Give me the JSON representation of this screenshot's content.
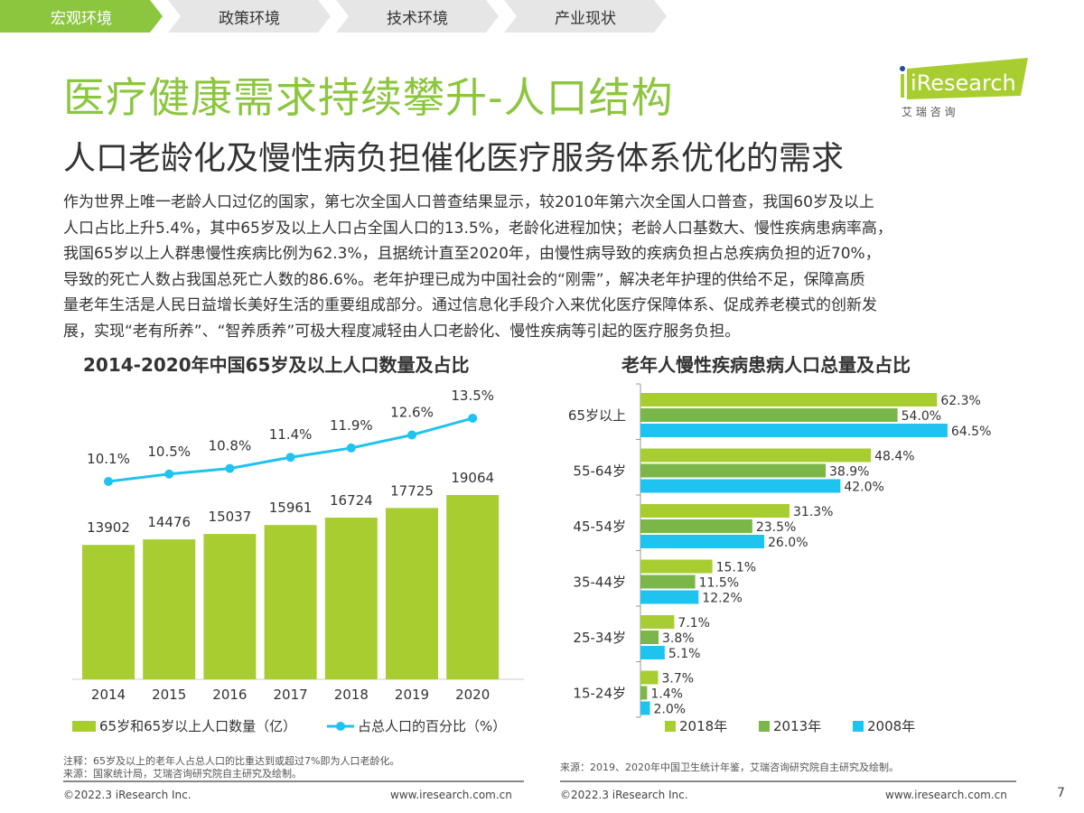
{
  "nav": {
    "tabs": [
      {
        "label": "宏观环境",
        "active": true
      },
      {
        "label": "政策环境",
        "active": false
      },
      {
        "label": "技术环境",
        "active": false
      },
      {
        "label": "产业现状",
        "active": false
      }
    ]
  },
  "header": {
    "title": "医疗健康需求持续攀升-人口结构",
    "subtitle": "人口老龄化及慢性病负担催化医疗服务体系优化的需求"
  },
  "logo": {
    "brand": "iResearch",
    "cn": "艾 瑞 咨 询"
  },
  "body_lines": [
    "作为世界上唯一老龄人口过亿的国家，第七次全国人口普查结果显示，较2010年第六次全国人口普查，我国60岁及以上",
    "人口占比上升5.4%，其中65岁及以上人口占全国人口的13.5%，老龄化进程加快；老龄人口基数大、慢性疾病患病率高，",
    "我国65岁以上人群患慢性疾病比例为62.3%，且据统计直至2020年，由慢性病导致的疾病负担占总疾病负担的近70%，",
    "导致的死亡人数占我国总死亡人数的86.6%。老年护理已成为中国社会的“刚需”，解决老年护理的供给不足，保障高质",
    "量老年生活是人民日益增长美好生活的重要组成部分。通过信息化手段介入来优化医疗保障体系、促成养老模式的创新发",
    "展，实现“老有所养”、“智养质养”可极大程度减轻由人口老龄化、慢性疾病等引起的医疗服务负担。"
  ],
  "colors": {
    "accent": "#8cc63f",
    "lime": "#a8cd30",
    "green": "#7ab648",
    "cyan": "#1fc3ef"
  },
  "chart_data": [
    {
      "type": "bar+line",
      "title": "2014-2020年中国65岁及以上人口数量及占比",
      "categories": [
        "2014",
        "2015",
        "2016",
        "2017",
        "2018",
        "2019",
        "2020"
      ],
      "series": [
        {
          "name": "65岁和65岁以上人口数量（亿）",
          "type": "bar",
          "values": [
            13902,
            14476,
            15037,
            15961,
            16724,
            17725,
            19064
          ]
        },
        {
          "name": "占总人口的百分比（%）",
          "type": "line",
          "values": [
            10.1,
            10.5,
            10.8,
            11.4,
            11.9,
            12.6,
            13.5
          ],
          "labels": [
            "10.1%",
            "10.5%",
            "10.8%",
            "11.4%",
            "11.9%",
            "12.6%",
            "13.5%"
          ]
        }
      ],
      "legend": "bottom",
      "grid": false
    },
    {
      "type": "bar",
      "orientation": "horizontal",
      "title": "老年人慢性疾病患病人口总量及占比",
      "categories": [
        "65岁以上",
        "55-64岁",
        "45-54岁",
        "35-44岁",
        "25-34岁",
        "15-24岁"
      ],
      "series": [
        {
          "name": "2018年",
          "values": [
            62.3,
            48.4,
            31.3,
            15.1,
            7.1,
            3.7
          ]
        },
        {
          "name": "2013年",
          "values": [
            54.0,
            38.9,
            23.5,
            11.5,
            3.8,
            1.4
          ]
        },
        {
          "name": "2008年",
          "values": [
            64.5,
            42.0,
            26.0,
            12.2,
            5.1,
            2.0
          ]
        }
      ],
      "legend": "bottom",
      "grid": false
    }
  ],
  "notes": {
    "left": [
      "注释：65岁及以上的老年人占总人口的比重达到或超过7%即为人口老龄化。",
      "来源：国家统计局，艾瑞咨询研究院自主研究及绘制。"
    ],
    "right": "来源：2019、2020年中国卫生统计年鉴，艾瑞咨询研究院自主研究及绘制。"
  },
  "footer": {
    "copyright": "©2022.3 iResearch Inc.",
    "url": "www.iresearch.com.cn",
    "page": "7"
  }
}
